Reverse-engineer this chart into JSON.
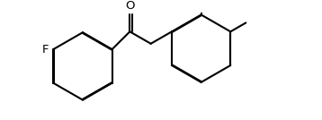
{
  "background_color": "#ffffff",
  "bond_color": "#000000",
  "text_color": "#000000",
  "bond_width": 1.5,
  "font_size": 9.5,
  "figsize": [
    3.58,
    1.34
  ],
  "dpi": 100,
  "F_label": "F",
  "O_label": "O"
}
